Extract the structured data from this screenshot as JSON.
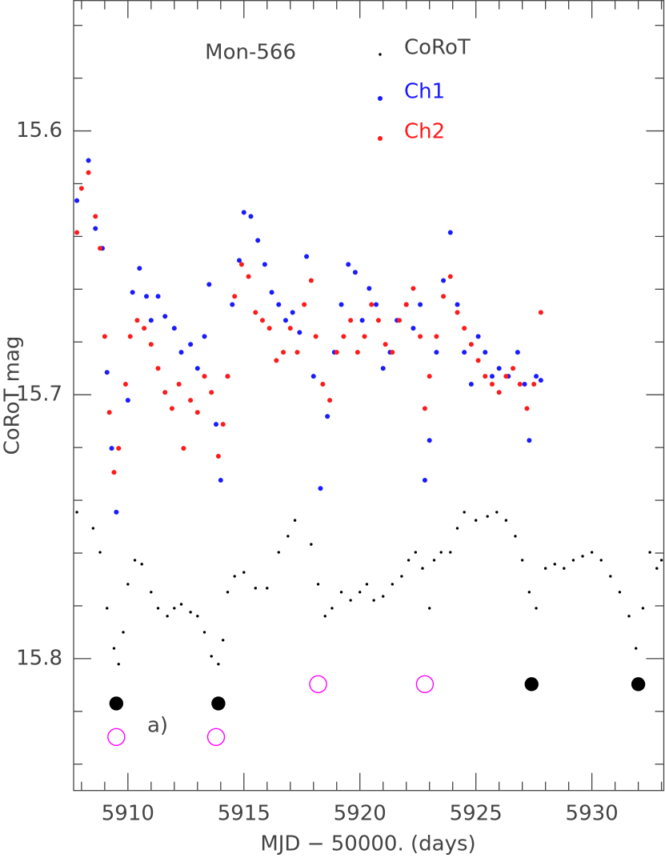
{
  "chart_data": {
    "type": "scatter",
    "xlabel": "MJD − 50000. (days)",
    "ylabel": "CoRoT mag",
    "title": "Mon-566",
    "annotation": "a)",
    "y_inverted": true,
    "xlim": [
      5907.66,
      5933.1
    ],
    "ylim": [
      15.5506,
      15.85
    ],
    "xticks": [
      5910,
      5915,
      5920,
      5925,
      5930
    ],
    "xticks_minor": [
      5908,
      5909,
      5911,
      5912,
      5913,
      5914,
      5916,
      5917,
      5918,
      5919,
      5921,
      5922,
      5923,
      5924,
      5926,
      5927,
      5928,
      5929,
      5931,
      5932,
      5933
    ],
    "yticks": [
      15.6,
      15.7,
      15.8
    ],
    "yticks_minor": [
      15.56,
      15.58,
      15.62,
      15.64,
      15.66,
      15.68,
      15.72,
      15.74,
      15.76,
      15.78,
      15.82,
      15.84
    ],
    "series": [
      {
        "name": "CoRoT",
        "color": "#000000",
        "x": [
          5907.8,
          5908.5,
          5908.8,
          5909.1,
          5909.4,
          5909.6,
          5909.8,
          5910.0,
          5910.3,
          5910.6,
          5911.0,
          5911.3,
          5911.7,
          5912.0,
          5912.3,
          5912.7,
          5913.0,
          5913.3,
          5913.6,
          5913.9,
          5914.1,
          5914.3,
          5914.6,
          5915.0,
          5915.5,
          5916.0,
          5916.5,
          5916.9,
          5917.2,
          5917.9,
          5918.2,
          5918.5,
          5918.8,
          5919.2,
          5919.6,
          5920.0,
          5920.3,
          5920.6,
          5921.0,
          5921.4,
          5921.8,
          5922.1,
          5922.4,
          5922.7,
          5923.0,
          5923.2,
          5923.5,
          5923.9,
          5924.2,
          5924.5,
          5925.0,
          5925.5,
          5925.9,
          5926.3,
          5926.7,
          5927.0,
          5927.3,
          5927.6,
          5928.0,
          5928.4,
          5928.8,
          5929.2,
          5929.6,
          5930.0,
          5930.4,
          5930.8,
          5931.2,
          5931.6,
          5931.9,
          5932.2,
          5932.5,
          5932.8,
          5933.0
        ],
        "values": [
          15.7445,
          15.7506,
          15.7597,
          15.7809,
          15.7961,
          15.8021,
          15.79,
          15.7718,
          15.7627,
          15.7642,
          15.7748,
          15.7809,
          15.7839,
          15.7809,
          15.7794,
          15.7824,
          15.7839,
          15.79,
          15.7991,
          15.8021,
          15.793,
          15.7748,
          15.7688,
          15.7673,
          15.7733,
          15.7733,
          15.7597,
          15.7536,
          15.7476,
          15.7567,
          15.7718,
          15.7839,
          15.7809,
          15.7748,
          15.7779,
          15.7748,
          15.7718,
          15.7779,
          15.7764,
          15.7718,
          15.7688,
          15.7627,
          15.7597,
          15.7658,
          15.7809,
          15.7627,
          15.7597,
          15.7597,
          15.7506,
          15.7445,
          15.7476,
          15.7461,
          15.7445,
          15.7476,
          15.7536,
          15.7627,
          15.7748,
          15.7809,
          15.7658,
          15.7642,
          15.7658,
          15.7627,
          15.7612,
          15.7597,
          15.7627,
          15.7688,
          15.7748,
          15.7839,
          15.7961,
          15.7809,
          15.7597,
          15.7658,
          15.7627
        ]
      },
      {
        "name": "Ch1",
        "color": "#1a1aff",
        "x": [
          5907.8,
          5908.3,
          5908.6,
          5908.9,
          5909.1,
          5909.3,
          5909.5,
          5910.0,
          5910.2,
          5910.5,
          5910.8,
          5911.0,
          5911.3,
          5911.6,
          5912.0,
          5912.3,
          5912.7,
          5913.0,
          5913.3,
          5913.5,
          5913.8,
          5914.0,
          5914.3,
          5914.5,
          5914.8,
          5915.0,
          5915.3,
          5915.6,
          5915.9,
          5916.2,
          5916.5,
          5916.8,
          5917.1,
          5917.4,
          5917.7,
          5918.0,
          5918.3,
          5918.6,
          5918.9,
          5919.2,
          5919.5,
          5919.8,
          5920.1,
          5920.4,
          5920.7,
          5921.0,
          5921.3,
          5921.6,
          5922.0,
          5922.3,
          5922.6,
          5922.8,
          5923.0,
          5923.3,
          5923.6,
          5923.9,
          5924.2,
          5924.5,
          5924.8,
          5925.1,
          5925.4,
          5925.7,
          5926.0,
          5926.4,
          5926.8,
          5927.1,
          5927.3,
          5927.6,
          5927.8
        ],
        "values": [
          15.6264,
          15.6112,
          15.637,
          15.6445,
          15.6915,
          15.7203,
          15.7445,
          15.7021,
          15.6612,
          15.6521,
          15.6627,
          15.6718,
          15.6627,
          15.6703,
          15.6748,
          15.6839,
          15.6809,
          15.69,
          15.6779,
          15.6582,
          15.7112,
          15.7324,
          15.693,
          15.6658,
          15.6491,
          15.6309,
          15.6324,
          15.6415,
          15.6506,
          15.6612,
          15.6658,
          15.6718,
          15.6688,
          15.6764,
          15.6476,
          15.693,
          15.7355,
          15.7082,
          15.6839,
          15.6658,
          15.6506,
          15.6536,
          15.6718,
          15.6597,
          15.6658,
          15.69,
          15.6839,
          15.6718,
          15.6658,
          15.6748,
          15.6658,
          15.7324,
          15.7173,
          15.6839,
          15.6567,
          15.6385,
          15.6658,
          15.6839,
          15.696,
          15.6779,
          15.6839,
          15.693,
          15.69,
          15.693,
          15.6839,
          15.696,
          15.7173,
          15.693,
          15.6945
        ]
      },
      {
        "name": "Ch2",
        "color": "#ff1a1a",
        "x": [
          5907.8,
          5908.0,
          5908.3,
          5908.6,
          5908.8,
          5909.0,
          5909.2,
          5909.4,
          5909.6,
          5909.9,
          5910.1,
          5910.4,
          5910.7,
          5911.0,
          5911.3,
          5911.6,
          5911.9,
          5912.2,
          5912.4,
          5912.7,
          5913.0,
          5913.3,
          5913.6,
          5913.9,
          5914.1,
          5914.3,
          5914.6,
          5914.9,
          5915.2,
          5915.5,
          5915.8,
          5916.1,
          5916.4,
          5916.7,
          5917.0,
          5917.3,
          5917.6,
          5917.9,
          5918.1,
          5918.4,
          5918.7,
          5919.0,
          5919.3,
          5919.6,
          5919.9,
          5920.2,
          5920.5,
          5920.8,
          5921.1,
          5921.4,
          5921.7,
          5922.0,
          5922.3,
          5922.6,
          5922.8,
          5923.0,
          5923.3,
          5923.6,
          5923.9,
          5924.2,
          5924.5,
          5924.8,
          5925.1,
          5925.4,
          5925.7,
          5926.0,
          5926.3,
          5926.6,
          5926.9,
          5927.2,
          5927.5,
          5927.8
        ],
        "values": [
          15.6385,
          15.6218,
          15.6158,
          15.6324,
          15.6445,
          15.6779,
          15.7067,
          15.7294,
          15.7203,
          15.696,
          15.6779,
          15.6718,
          15.6748,
          15.6809,
          15.69,
          15.6991,
          15.7052,
          15.696,
          15.7203,
          15.7021,
          15.7067,
          15.693,
          15.6991,
          15.7233,
          15.7112,
          15.693,
          15.6627,
          15.6506,
          15.6552,
          15.6688,
          15.6718,
          15.6748,
          15.687,
          15.6839,
          15.6748,
          15.6839,
          15.6658,
          15.6567,
          15.6779,
          15.696,
          15.7021,
          15.6839,
          15.6779,
          15.6718,
          15.6839,
          15.6779,
          15.6658,
          15.6718,
          15.6809,
          15.6839,
          15.6718,
          15.6658,
          15.6597,
          15.6779,
          15.7052,
          15.693,
          15.6779,
          15.6627,
          15.6552,
          15.6688,
          15.6748,
          15.6809,
          15.687,
          15.693,
          15.696,
          15.6991,
          15.693,
          15.69,
          15.696,
          15.7052,
          15.696,
          15.6688
        ]
      }
    ],
    "markers": [
      {
        "style": "filled",
        "color": "#000000",
        "x": [
          5909.5,
          5913.9,
          5927.4,
          5932.0
        ],
        "values": [
          15.817,
          15.817,
          15.8097,
          15.8097
        ]
      },
      {
        "style": "open",
        "color": "#ff00ff",
        "x": [
          5909.5,
          5913.8,
          5918.2,
          5922.8
        ],
        "values": [
          15.8297,
          15.8297,
          15.8097,
          15.8097
        ]
      }
    ]
  }
}
